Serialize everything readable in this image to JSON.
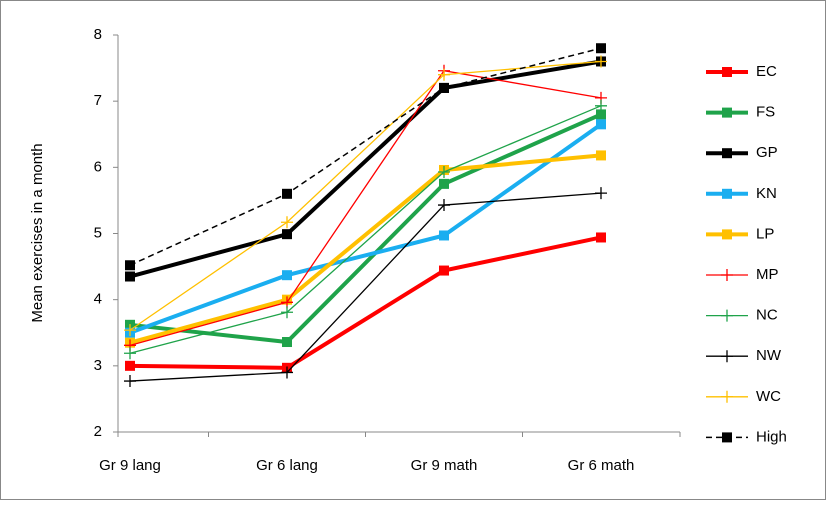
{
  "chart_data": {
    "type": "line",
    "y_label": "Mean exercises in a month",
    "categories": [
      "Gr 9 lang",
      "Gr 6 lang",
      "Gr 9 math",
      "Gr 6 math"
    ],
    "ylim": [
      2,
      8
    ],
    "yticks": [
      2,
      3,
      4,
      5,
      6,
      7,
      8
    ],
    "legend": "right",
    "series": [
      {
        "name": "EC",
        "color": "#ff0000",
        "marker": "square",
        "width": 4,
        "values": [
          3.0,
          2.97,
          4.44,
          4.94
        ]
      },
      {
        "name": "FS",
        "color": "#1fa34a",
        "marker": "square",
        "width": 4,
        "values": [
          3.62,
          3.36,
          5.75,
          6.8
        ]
      },
      {
        "name": "GP",
        "color": "#000000",
        "marker": "square",
        "width": 4,
        "values": [
          4.35,
          4.99,
          7.2,
          7.6
        ]
      },
      {
        "name": "KN",
        "color": "#1aaef0",
        "marker": "square",
        "width": 4,
        "values": [
          3.5,
          4.37,
          4.97,
          6.65
        ]
      },
      {
        "name": "LP",
        "color": "#ffc000",
        "marker": "square",
        "width": 4,
        "values": [
          3.35,
          4.0,
          5.96,
          6.18
        ]
      },
      {
        "name": "MP",
        "color": "#ff0000",
        "marker": "plus",
        "width": 1.3,
        "values": [
          3.31,
          3.96,
          7.46,
          7.05
        ]
      },
      {
        "name": "NC",
        "color": "#1fa34a",
        "marker": "plus",
        "width": 1.3,
        "values": [
          3.19,
          3.81,
          5.93,
          6.93
        ]
      },
      {
        "name": "NW",
        "color": "#000000",
        "marker": "plus",
        "width": 1.3,
        "values": [
          2.77,
          2.9,
          5.43,
          5.61
        ]
      },
      {
        "name": "WC",
        "color": "#ffc000",
        "marker": "plus",
        "width": 1.3,
        "values": [
          3.54,
          5.17,
          7.4,
          7.6
        ]
      },
      {
        "name": "High",
        "color": "#000000",
        "marker": "square",
        "width": 1.5,
        "dashed": true,
        "values": [
          4.52,
          5.6,
          7.2,
          7.8
        ]
      }
    ]
  }
}
